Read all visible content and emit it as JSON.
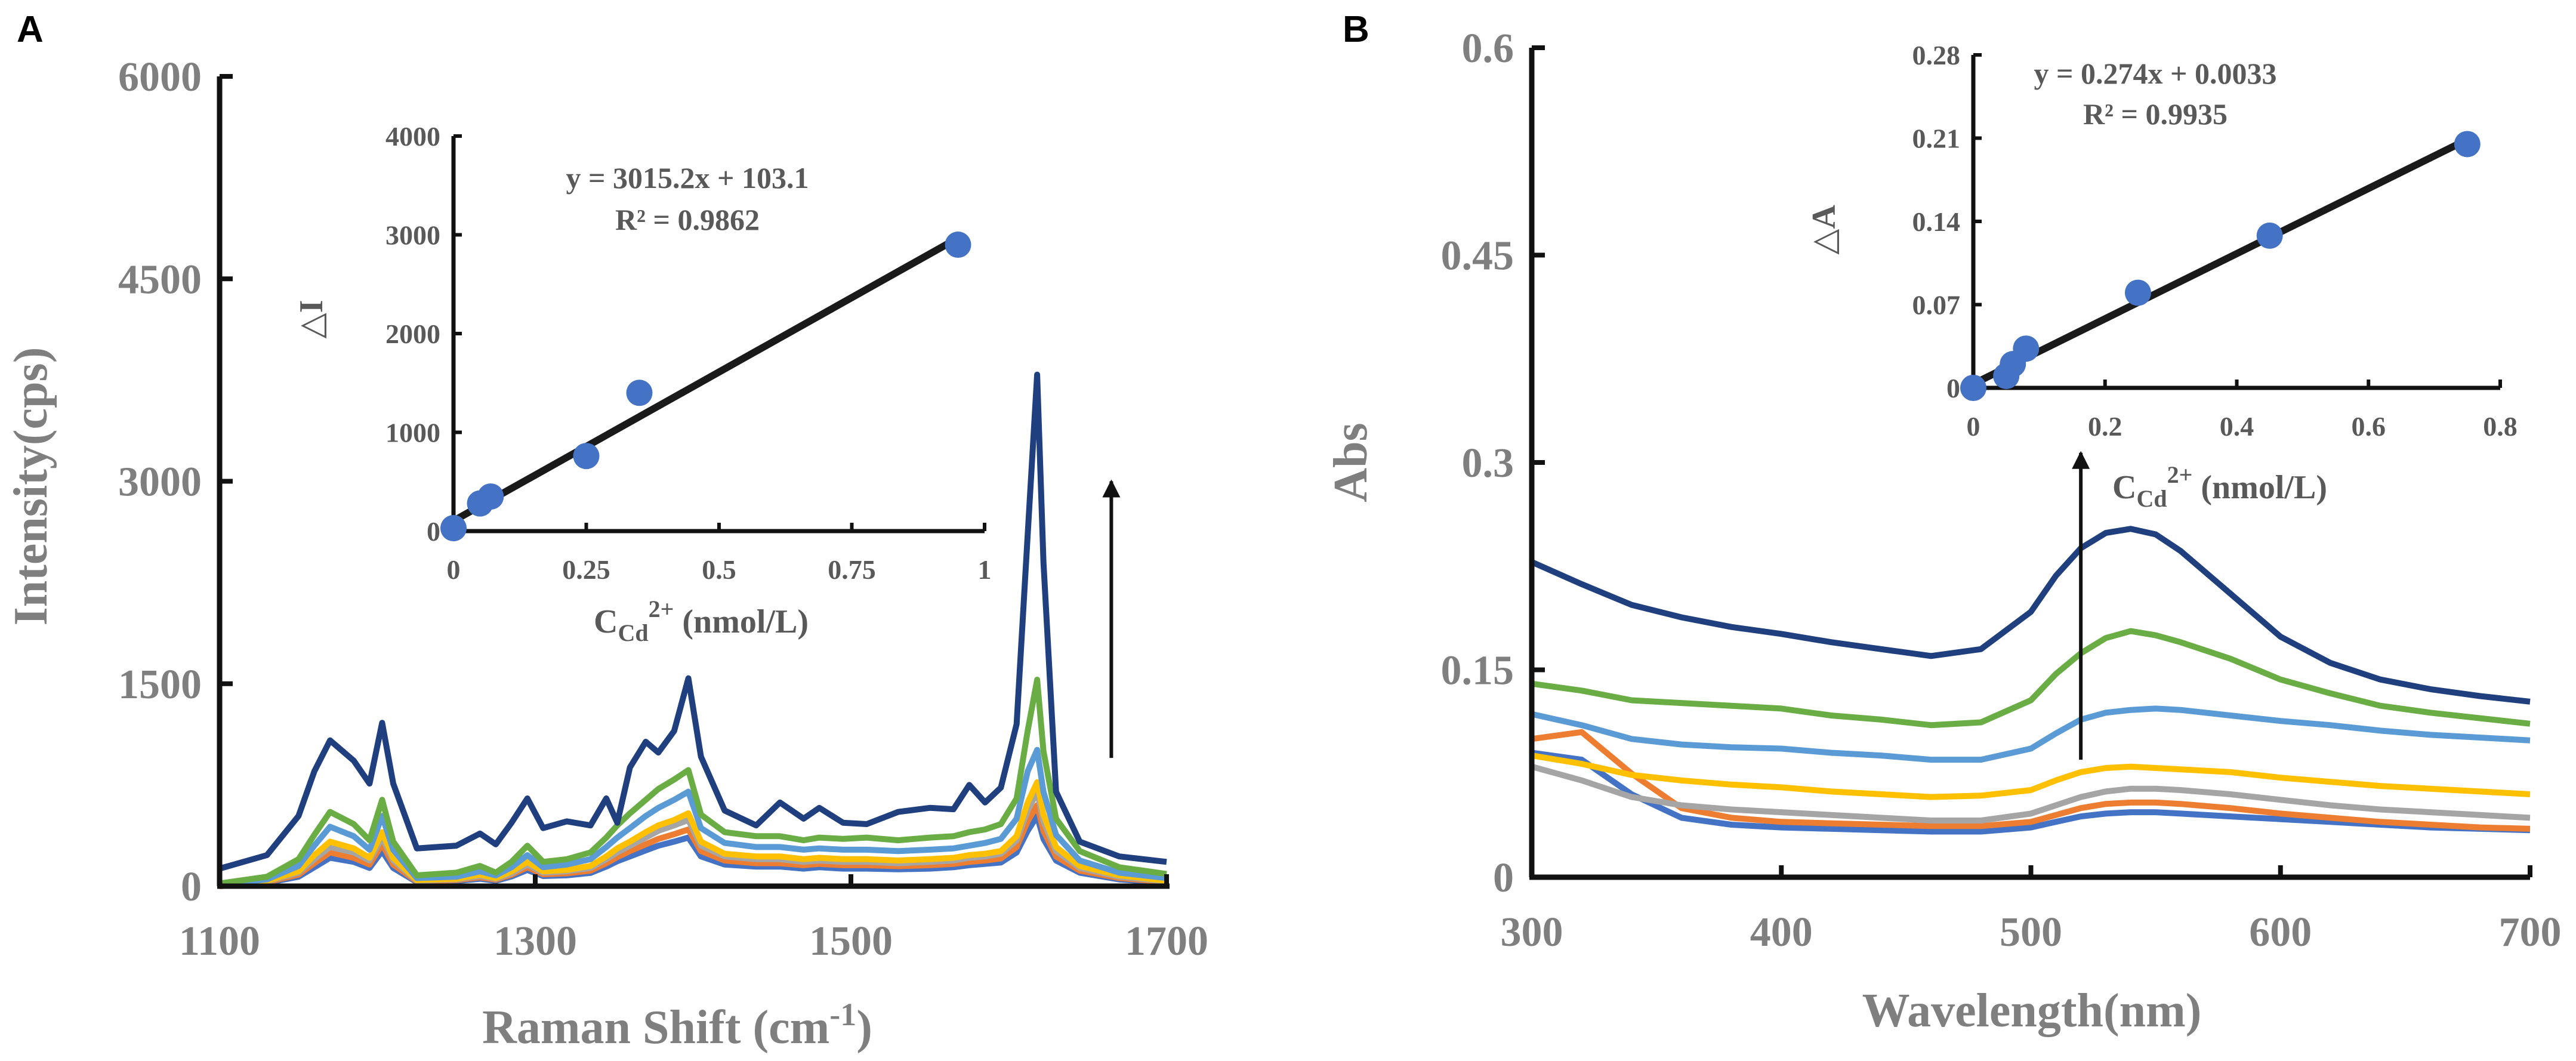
{
  "chart_data": [
    {
      "type": "line",
      "panel_label": "A",
      "title": "",
      "xlabel": "Raman Shift (cm",
      "xlabel_sup": "-1",
      "xlabel_close": ")",
      "ylabel": "Intensity(cps)",
      "xlim": [
        1100,
        1700
      ],
      "ylim": [
        0,
        6000
      ],
      "xticks": [
        1100,
        1300,
        1500,
        1700
      ],
      "yticks": [
        0,
        1500,
        3000,
        4500,
        6000
      ],
      "x": [
        1100,
        1130,
        1150,
        1160,
        1170,
        1185,
        1195,
        1203,
        1210,
        1225,
        1250,
        1265,
        1275,
        1285,
        1295,
        1305,
        1320,
        1335,
        1345,
        1352,
        1360,
        1370,
        1378,
        1388,
        1397,
        1405,
        1420,
        1440,
        1455,
        1470,
        1480,
        1495,
        1510,
        1530,
        1550,
        1565,
        1575,
        1585,
        1595,
        1605,
        1612,
        1618,
        1622,
        1630,
        1645,
        1670,
        1700
      ],
      "series": [
        {
          "name": "s1",
          "color": "#1f3f7f",
          "values": [
            130,
            230,
            520,
            850,
            1080,
            930,
            760,
            1210,
            760,
            280,
            300,
            390,
            310,
            470,
            650,
            430,
            480,
            450,
            650,
            470,
            880,
            1070,
            990,
            1150,
            1540,
            960,
            560,
            450,
            620,
            500,
            580,
            470,
            460,
            550,
            580,
            570,
            750,
            620,
            730,
            1200,
            2600,
            3790,
            2400,
            700,
            330,
            220,
            180
          ]
        },
        {
          "name": "s2",
          "color": "#6aad45",
          "values": [
            20,
            70,
            200,
            380,
            550,
            460,
            340,
            640,
            330,
            80,
            100,
            150,
            100,
            180,
            300,
            180,
            200,
            250,
            360,
            450,
            540,
            640,
            720,
            790,
            860,
            530,
            400,
            370,
            370,
            340,
            360,
            350,
            360,
            340,
            360,
            370,
            400,
            420,
            460,
            650,
            1150,
            1530,
            1000,
            500,
            260,
            140,
            90
          ]
        },
        {
          "name": "s3",
          "color": "#5b9bd5",
          "values": [
            10,
            50,
            150,
            300,
            440,
            370,
            270,
            520,
            270,
            60,
            70,
            110,
            80,
            140,
            230,
            140,
            160,
            200,
            290,
            360,
            430,
            520,
            580,
            640,
            700,
            430,
            320,
            290,
            290,
            270,
            280,
            270,
            270,
            260,
            270,
            280,
            300,
            320,
            350,
            500,
            850,
            1010,
            700,
            380,
            190,
            100,
            60
          ]
        },
        {
          "name": "s4",
          "color": "#ffc000",
          "values": [
            5,
            40,
            110,
            230,
            330,
            280,
            210,
            400,
            210,
            45,
            55,
            85,
            60,
            110,
            180,
            110,
            120,
            150,
            220,
            280,
            330,
            400,
            450,
            490,
            540,
            330,
            240,
            220,
            220,
            200,
            210,
            200,
            200,
            190,
            200,
            210,
            230,
            240,
            260,
            370,
            620,
            770,
            530,
            290,
            150,
            80,
            40
          ]
        },
        {
          "name": "s5",
          "color": "#a5a5a5",
          "values": [
            5,
            35,
            100,
            200,
            290,
            250,
            190,
            360,
            190,
            40,
            50,
            75,
            55,
            95,
            160,
            100,
            110,
            135,
            200,
            250,
            300,
            360,
            410,
            450,
            490,
            300,
            220,
            200,
            200,
            180,
            190,
            180,
            180,
            170,
            180,
            190,
            210,
            220,
            240,
            340,
            560,
            700,
            480,
            260,
            135,
            70,
            35
          ]
        },
        {
          "name": "s6",
          "color": "#ed7d31",
          "values": [
            0,
            30,
            85,
            170,
            250,
            210,
            160,
            310,
            160,
            35,
            45,
            65,
            48,
            85,
            140,
            88,
            95,
            115,
            170,
            215,
            260,
            310,
            350,
            385,
            420,
            260,
            190,
            170,
            170,
            155,
            165,
            155,
            155,
            148,
            155,
            165,
            180,
            190,
            205,
            290,
            480,
            600,
            410,
            220,
            115,
            60,
            30
          ]
        },
        {
          "name": "s7",
          "color": "#4472c4",
          "values": [
            0,
            25,
            70,
            140,
            210,
            180,
            135,
            260,
            135,
            30,
            38,
            55,
            40,
            72,
            120,
            75,
            80,
            98,
            145,
            185,
            220,
            265,
            300,
            330,
            360,
            220,
            160,
            145,
            145,
            130,
            140,
            130,
            130,
            125,
            130,
            140,
            155,
            165,
            175,
            250,
            410,
            520,
            350,
            190,
            100,
            50,
            25
          ]
        }
      ],
      "arrow": {
        "x": 1665,
        "y_from": 950,
        "y_to": 3000
      },
      "inset": {
        "type": "scatter",
        "xlabel_main": "C",
        "xlabel_sub": "Cd",
        "xlabel_sup": "2+",
        "xlabel_unit": " (nmol/L)",
        "ylabel": "△I",
        "xlim": [
          0,
          1
        ],
        "ylim": [
          0,
          4000
        ],
        "xticks": [
          "0",
          "0.25",
          "0.5",
          "0.75",
          "1"
        ],
        "xtick_values": [
          0,
          0.25,
          0.5,
          0.75,
          1
        ],
        "yticks": [
          0,
          1000,
          2000,
          3000,
          4000
        ],
        "x": [
          0,
          0.05,
          0.07,
          0.25,
          0.35,
          0.95
        ],
        "y": [
          30,
          280,
          350,
          760,
          1400,
          2900
        ],
        "fit": {
          "slope": 3015.2,
          "intercept": 103.1,
          "x_range": [
            0,
            0.95
          ]
        },
        "equation": "y = 3015.2x + 103.1",
        "r2": "R² = 0.9862",
        "marker_color": "#4472c4"
      }
    },
    {
      "type": "line",
      "panel_label": "B",
      "title": "",
      "xlabel": "Wavelength(nm)",
      "ylabel": "Abs",
      "xlim": [
        300,
        700
      ],
      "ylim": [
        0,
        0.6
      ],
      "xticks": [
        300,
        400,
        500,
        600,
        700
      ],
      "yticks": [
        "0",
        "0.15",
        "0.3",
        "0.45",
        "0.6"
      ],
      "ytick_values": [
        0,
        0.15,
        0.3,
        0.45,
        0.6
      ],
      "x": [
        300,
        320,
        340,
        360,
        380,
        400,
        420,
        440,
        460,
        480,
        500,
        510,
        520,
        530,
        540,
        550,
        560,
        580,
        600,
        620,
        640,
        660,
        680,
        700
      ],
      "series": [
        {
          "name": "s1",
          "color": "#1f3f7f",
          "values": [
            0.228,
            0.212,
            0.197,
            0.188,
            0.181,
            0.176,
            0.17,
            0.165,
            0.16,
            0.165,
            0.192,
            0.218,
            0.238,
            0.249,
            0.252,
            0.248,
            0.236,
            0.205,
            0.174,
            0.155,
            0.143,
            0.136,
            0.131,
            0.127
          ]
        },
        {
          "name": "s2",
          "color": "#6aad45",
          "values": [
            0.14,
            0.135,
            0.128,
            0.126,
            0.124,
            0.122,
            0.117,
            0.114,
            0.11,
            0.112,
            0.128,
            0.147,
            0.162,
            0.173,
            0.178,
            0.175,
            0.17,
            0.158,
            0.143,
            0.133,
            0.124,
            0.119,
            0.115,
            0.111
          ]
        },
        {
          "name": "s3",
          "color": "#5b9bd5",
          "values": [
            0.118,
            0.11,
            0.1,
            0.096,
            0.094,
            0.093,
            0.09,
            0.088,
            0.085,
            0.085,
            0.093,
            0.104,
            0.114,
            0.119,
            0.121,
            0.122,
            0.121,
            0.117,
            0.113,
            0.11,
            0.106,
            0.103,
            0.101,
            0.099
          ]
        },
        {
          "name": "s4",
          "color": "#ffc000",
          "values": [
            0.088,
            0.082,
            0.074,
            0.07,
            0.067,
            0.065,
            0.062,
            0.06,
            0.058,
            0.059,
            0.063,
            0.07,
            0.076,
            0.079,
            0.08,
            0.079,
            0.078,
            0.076,
            0.072,
            0.069,
            0.066,
            0.064,
            0.062,
            0.06
          ]
        },
        {
          "name": "s5",
          "color": "#a5a5a5",
          "values": [
            0.08,
            0.07,
            0.058,
            0.052,
            0.049,
            0.047,
            0.045,
            0.043,
            0.041,
            0.041,
            0.046,
            0.052,
            0.058,
            0.062,
            0.064,
            0.064,
            0.063,
            0.06,
            0.056,
            0.052,
            0.049,
            0.047,
            0.045,
            0.043
          ]
        },
        {
          "name": "s6",
          "color": "#ed7d31",
          "values": [
            0.1,
            0.105,
            0.075,
            0.05,
            0.043,
            0.04,
            0.039,
            0.038,
            0.037,
            0.037,
            0.04,
            0.045,
            0.05,
            0.053,
            0.054,
            0.054,
            0.053,
            0.05,
            0.046,
            0.043,
            0.04,
            0.038,
            0.036,
            0.035
          ]
        },
        {
          "name": "s7",
          "color": "#4472c4",
          "values": [
            0.09,
            0.085,
            0.06,
            0.043,
            0.038,
            0.036,
            0.035,
            0.034,
            0.033,
            0.033,
            0.036,
            0.04,
            0.044,
            0.046,
            0.047,
            0.047,
            0.046,
            0.044,
            0.042,
            0.04,
            0.038,
            0.036,
            0.035,
            0.034
          ]
        }
      ],
      "arrow": {
        "x": 520,
        "y_from": 0.085,
        "y_to": 0.307
      },
      "inset": {
        "type": "scatter",
        "xlabel_main": "C",
        "xlabel_sub": "Cd",
        "xlabel_sup": "2+",
        "xlabel_unit": " (nmol/L)",
        "ylabel": "△A",
        "xlim": [
          0,
          0.8
        ],
        "ylim": [
          0,
          0.28
        ],
        "xticks": [
          "0",
          "0.2",
          "0.4",
          "0.6",
          "0.8"
        ],
        "xtick_values": [
          0,
          0.2,
          0.4,
          0.6,
          0.8
        ],
        "yticks": [
          "0",
          "0.07",
          "0.14",
          "0.21",
          "0.28"
        ],
        "ytick_values": [
          0,
          0.07,
          0.14,
          0.21,
          0.28
        ],
        "x": [
          0,
          0.05,
          0.06,
          0.08,
          0.25,
          0.45,
          0.75
        ],
        "y": [
          0,
          0.01,
          0.02,
          0.033,
          0.08,
          0.128,
          0.205
        ],
        "fit": {
          "slope": 0.274,
          "intercept": 0.0033,
          "x_range": [
            0,
            0.75
          ]
        },
        "equation": "y = 0.274x + 0.0033",
        "r2": "R² = 0.9935",
        "marker_color": "#4472c4"
      }
    }
  ]
}
